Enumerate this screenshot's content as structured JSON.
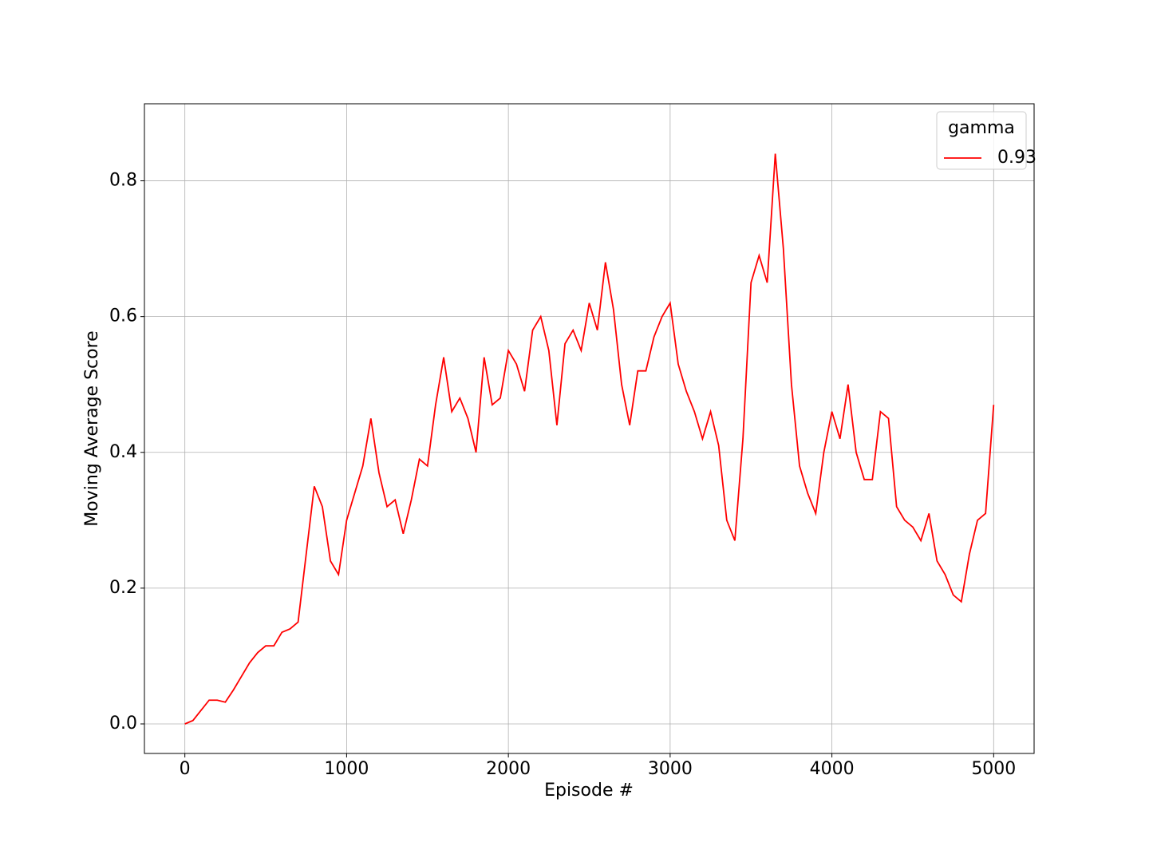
{
  "chart_data": {
    "type": "line",
    "xlabel": "Episode #",
    "ylabel": "Moving Average Score",
    "x": [
      0,
      50,
      100,
      150,
      200,
      250,
      300,
      350,
      400,
      450,
      500,
      550,
      600,
      650,
      700,
      750,
      800,
      850,
      900,
      950,
      1000,
      1050,
      1100,
      1150,
      1200,
      1250,
      1300,
      1350,
      1400,
      1450,
      1500,
      1550,
      1600,
      1650,
      1700,
      1750,
      1800,
      1850,
      1900,
      1950,
      2000,
      2050,
      2100,
      2150,
      2200,
      2250,
      2300,
      2350,
      2400,
      2450,
      2500,
      2550,
      2600,
      2650,
      2700,
      2750,
      2800,
      2850,
      2900,
      2950,
      3000,
      3050,
      3100,
      3150,
      3200,
      3250,
      3300,
      3350,
      3400,
      3450,
      3500,
      3550,
      3600,
      3650,
      3700,
      3750,
      3800,
      3850,
      3900,
      3950,
      4000,
      4050,
      4100,
      4150,
      4200,
      4250,
      4300,
      4350,
      4400,
      4450,
      4500,
      4550,
      4600,
      4650,
      4700,
      4750,
      4800,
      4850,
      4900,
      4950,
      5000
    ],
    "series": [
      {
        "name": "0.93",
        "color": "#ff0000",
        "values": [
          0.0,
          0.005,
          0.02,
          0.035,
          0.035,
          0.032,
          0.05,
          0.07,
          0.09,
          0.105,
          0.115,
          0.115,
          0.135,
          0.14,
          0.15,
          0.25,
          0.35,
          0.32,
          0.24,
          0.22,
          0.3,
          0.34,
          0.38,
          0.45,
          0.37,
          0.32,
          0.33,
          0.28,
          0.33,
          0.39,
          0.38,
          0.47,
          0.54,
          0.46,
          0.48,
          0.45,
          0.4,
          0.54,
          0.47,
          0.48,
          0.55,
          0.53,
          0.49,
          0.58,
          0.6,
          0.55,
          0.44,
          0.56,
          0.58,
          0.55,
          0.62,
          0.58,
          0.68,
          0.61,
          0.5,
          0.44,
          0.52,
          0.52,
          0.57,
          0.6,
          0.62,
          0.53,
          0.49,
          0.46,
          0.42,
          0.46,
          0.41,
          0.3,
          0.27,
          0.42,
          0.65,
          0.69,
          0.65,
          0.84,
          0.7,
          0.5,
          0.38,
          0.34,
          0.31,
          0.4,
          0.46,
          0.42,
          0.5,
          0.4,
          0.36,
          0.36,
          0.46,
          0.45,
          0.32,
          0.3,
          0.29,
          0.27,
          0.31,
          0.24,
          0.22,
          0.19,
          0.18,
          0.25,
          0.3,
          0.31,
          0.47
        ]
      }
    ],
    "xlim": [
      -250,
      5250
    ],
    "ylim": [
      -0.0435,
      0.9135
    ],
    "xticks": [
      0,
      1000,
      2000,
      3000,
      4000,
      5000
    ],
    "yticks": [
      {
        "value": 0,
        "label": "0.0"
      },
      0.2,
      0.4,
      0.6,
      0.8
    ],
    "grid": true,
    "legend_title": "gamma",
    "legend_loc": "upper right"
  }
}
